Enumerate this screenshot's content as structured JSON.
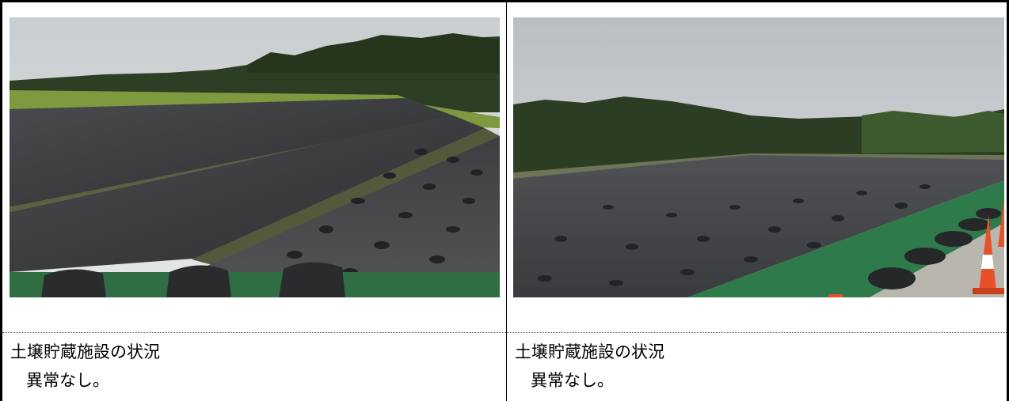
{
  "photos": [
    {
      "caption": {
        "title": "土壌貯蔵施設の状況",
        "status": "異常なし。"
      }
    },
    {
      "caption": {
        "title": "土壌貯蔵施設の状況",
        "status": "異常なし。"
      }
    }
  ],
  "colors": {
    "sky": "#d6dadc",
    "forest": "#2b3d23",
    "sheet": "#3a3b3d",
    "grass": "#7f9a3e",
    "green_mat": "#2f7a4a",
    "cone_orange": "#e8502a"
  }
}
